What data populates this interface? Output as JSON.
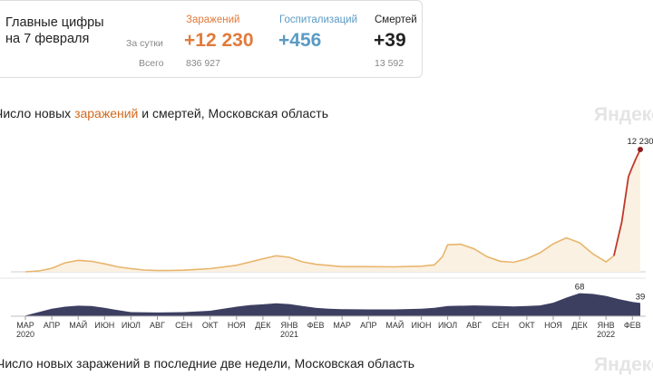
{
  "summary": {
    "title_line1": "Главные цифры",
    "title_line2": "на 7 февраля",
    "row_day": "За сутки",
    "row_total": "Всего",
    "cases": {
      "label": "Заражений",
      "day": "+12 230",
      "total": "836 927",
      "color": "#e07b3c"
    },
    "hosp": {
      "label": "Госпитализаций",
      "day": "+456",
      "color": "#5a9bc4"
    },
    "deaths": {
      "label": "Смертей",
      "day": "+39",
      "total": "13 592",
      "color": "#222222"
    }
  },
  "heading": {
    "prefix": "Число новых ",
    "cases_word": "заражений",
    "middle": " и ",
    "deaths_word": "смертей",
    "suffix": ", Московская область"
  },
  "watermark": "Яндекс",
  "footer_text": "Число новых заражений в последние две недели, Московская область",
  "chart_data": {
    "type": "area",
    "x_unit": "month index (0 = March 2020)",
    "x_ticks": [
      "МАР",
      "АПР",
      "МАЙ",
      "ИЮН",
      "ИЮЛ",
      "АВГ",
      "СЕН",
      "ОКТ",
      "НОЯ",
      "ДЕК",
      "ЯНВ",
      "ФЕВ",
      "МАР",
      "АПР",
      "МАЙ",
      "ИЮН",
      "ИЮЛ",
      "АВГ",
      "СЕН",
      "ОКТ",
      "НОЯ",
      "ДЕК",
      "ЯНВ",
      "ФЕВ"
    ],
    "year_labels": [
      {
        "index": 0,
        "year": "2020"
      },
      {
        "index": 10,
        "year": "2021"
      },
      {
        "index": 22,
        "year": "2022"
      }
    ],
    "series": [
      {
        "name": "заражений",
        "color": "#e8b56c",
        "peak_color": "#c0392b",
        "ylim": [
          0,
          12500
        ],
        "points": [
          [
            0.0,
            0
          ],
          [
            0.5,
            80
          ],
          [
            1.0,
            350
          ],
          [
            1.5,
            900
          ],
          [
            2.0,
            1150
          ],
          [
            2.5,
            1050
          ],
          [
            3.0,
            800
          ],
          [
            3.5,
            500
          ],
          [
            4.0,
            320
          ],
          [
            4.5,
            180
          ],
          [
            5.0,
            130
          ],
          [
            5.5,
            140
          ],
          [
            6.0,
            160
          ],
          [
            7.0,
            320
          ],
          [
            8.0,
            650
          ],
          [
            9.0,
            1300
          ],
          [
            9.5,
            1600
          ],
          [
            10.0,
            1450
          ],
          [
            10.5,
            1000
          ],
          [
            11.0,
            750
          ],
          [
            12.0,
            520
          ],
          [
            13.0,
            520
          ],
          [
            14.0,
            500
          ],
          [
            15.0,
            560
          ],
          [
            15.5,
            700
          ],
          [
            15.8,
            1500
          ],
          [
            16.0,
            2700
          ],
          [
            16.5,
            2750
          ],
          [
            17.0,
            2300
          ],
          [
            17.5,
            1500
          ],
          [
            18.0,
            1050
          ],
          [
            18.5,
            950
          ],
          [
            19.0,
            1300
          ],
          [
            19.5,
            1900
          ],
          [
            20.0,
            2800
          ],
          [
            20.5,
            3400
          ],
          [
            21.0,
            2900
          ],
          [
            21.5,
            1800
          ],
          [
            22.0,
            1000
          ],
          [
            22.3,
            1600
          ],
          [
            22.6,
            5000
          ],
          [
            22.85,
            9500
          ],
          [
            23.0,
            10500
          ],
          [
            23.15,
            11400
          ],
          [
            23.3,
            12230
          ]
        ],
        "peak": {
          "x": 23.3,
          "value": 12230,
          "label": "12 230"
        }
      },
      {
        "name": "смертей",
        "color": "#3d3f61",
        "ylim": [
          0,
          75
        ],
        "points": [
          [
            0.0,
            2
          ],
          [
            0.5,
            12
          ],
          [
            1.0,
            22
          ],
          [
            1.5,
            28
          ],
          [
            2.0,
            31
          ],
          [
            2.5,
            30
          ],
          [
            3.0,
            25
          ],
          [
            3.5,
            18
          ],
          [
            4.0,
            12
          ],
          [
            5.0,
            11
          ],
          [
            6.0,
            12
          ],
          [
            7.0,
            16
          ],
          [
            7.5,
            22
          ],
          [
            8.0,
            28
          ],
          [
            8.5,
            33
          ],
          [
            9.0,
            35
          ],
          [
            9.5,
            38
          ],
          [
            10.0,
            36
          ],
          [
            10.5,
            30
          ],
          [
            11.0,
            25
          ],
          [
            11.5,
            22
          ],
          [
            12.0,
            21
          ],
          [
            13.0,
            20
          ],
          [
            14.0,
            20
          ],
          [
            15.0,
            22
          ],
          [
            15.5,
            25
          ],
          [
            16.0,
            30
          ],
          [
            17.0,
            32
          ],
          [
            18.0,
            30
          ],
          [
            18.5,
            29
          ],
          [
            19.0,
            30
          ],
          [
            19.5,
            32
          ],
          [
            20.0,
            40
          ],
          [
            20.5,
            55
          ],
          [
            21.0,
            68
          ],
          [
            21.5,
            66
          ],
          [
            22.0,
            60
          ],
          [
            22.5,
            50
          ],
          [
            23.0,
            42
          ],
          [
            23.3,
            39
          ]
        ],
        "labels": [
          {
            "x": 21.0,
            "value": 68,
            "label": "68"
          },
          {
            "x": 23.3,
            "value": 39,
            "label": "39"
          }
        ]
      }
    ]
  }
}
